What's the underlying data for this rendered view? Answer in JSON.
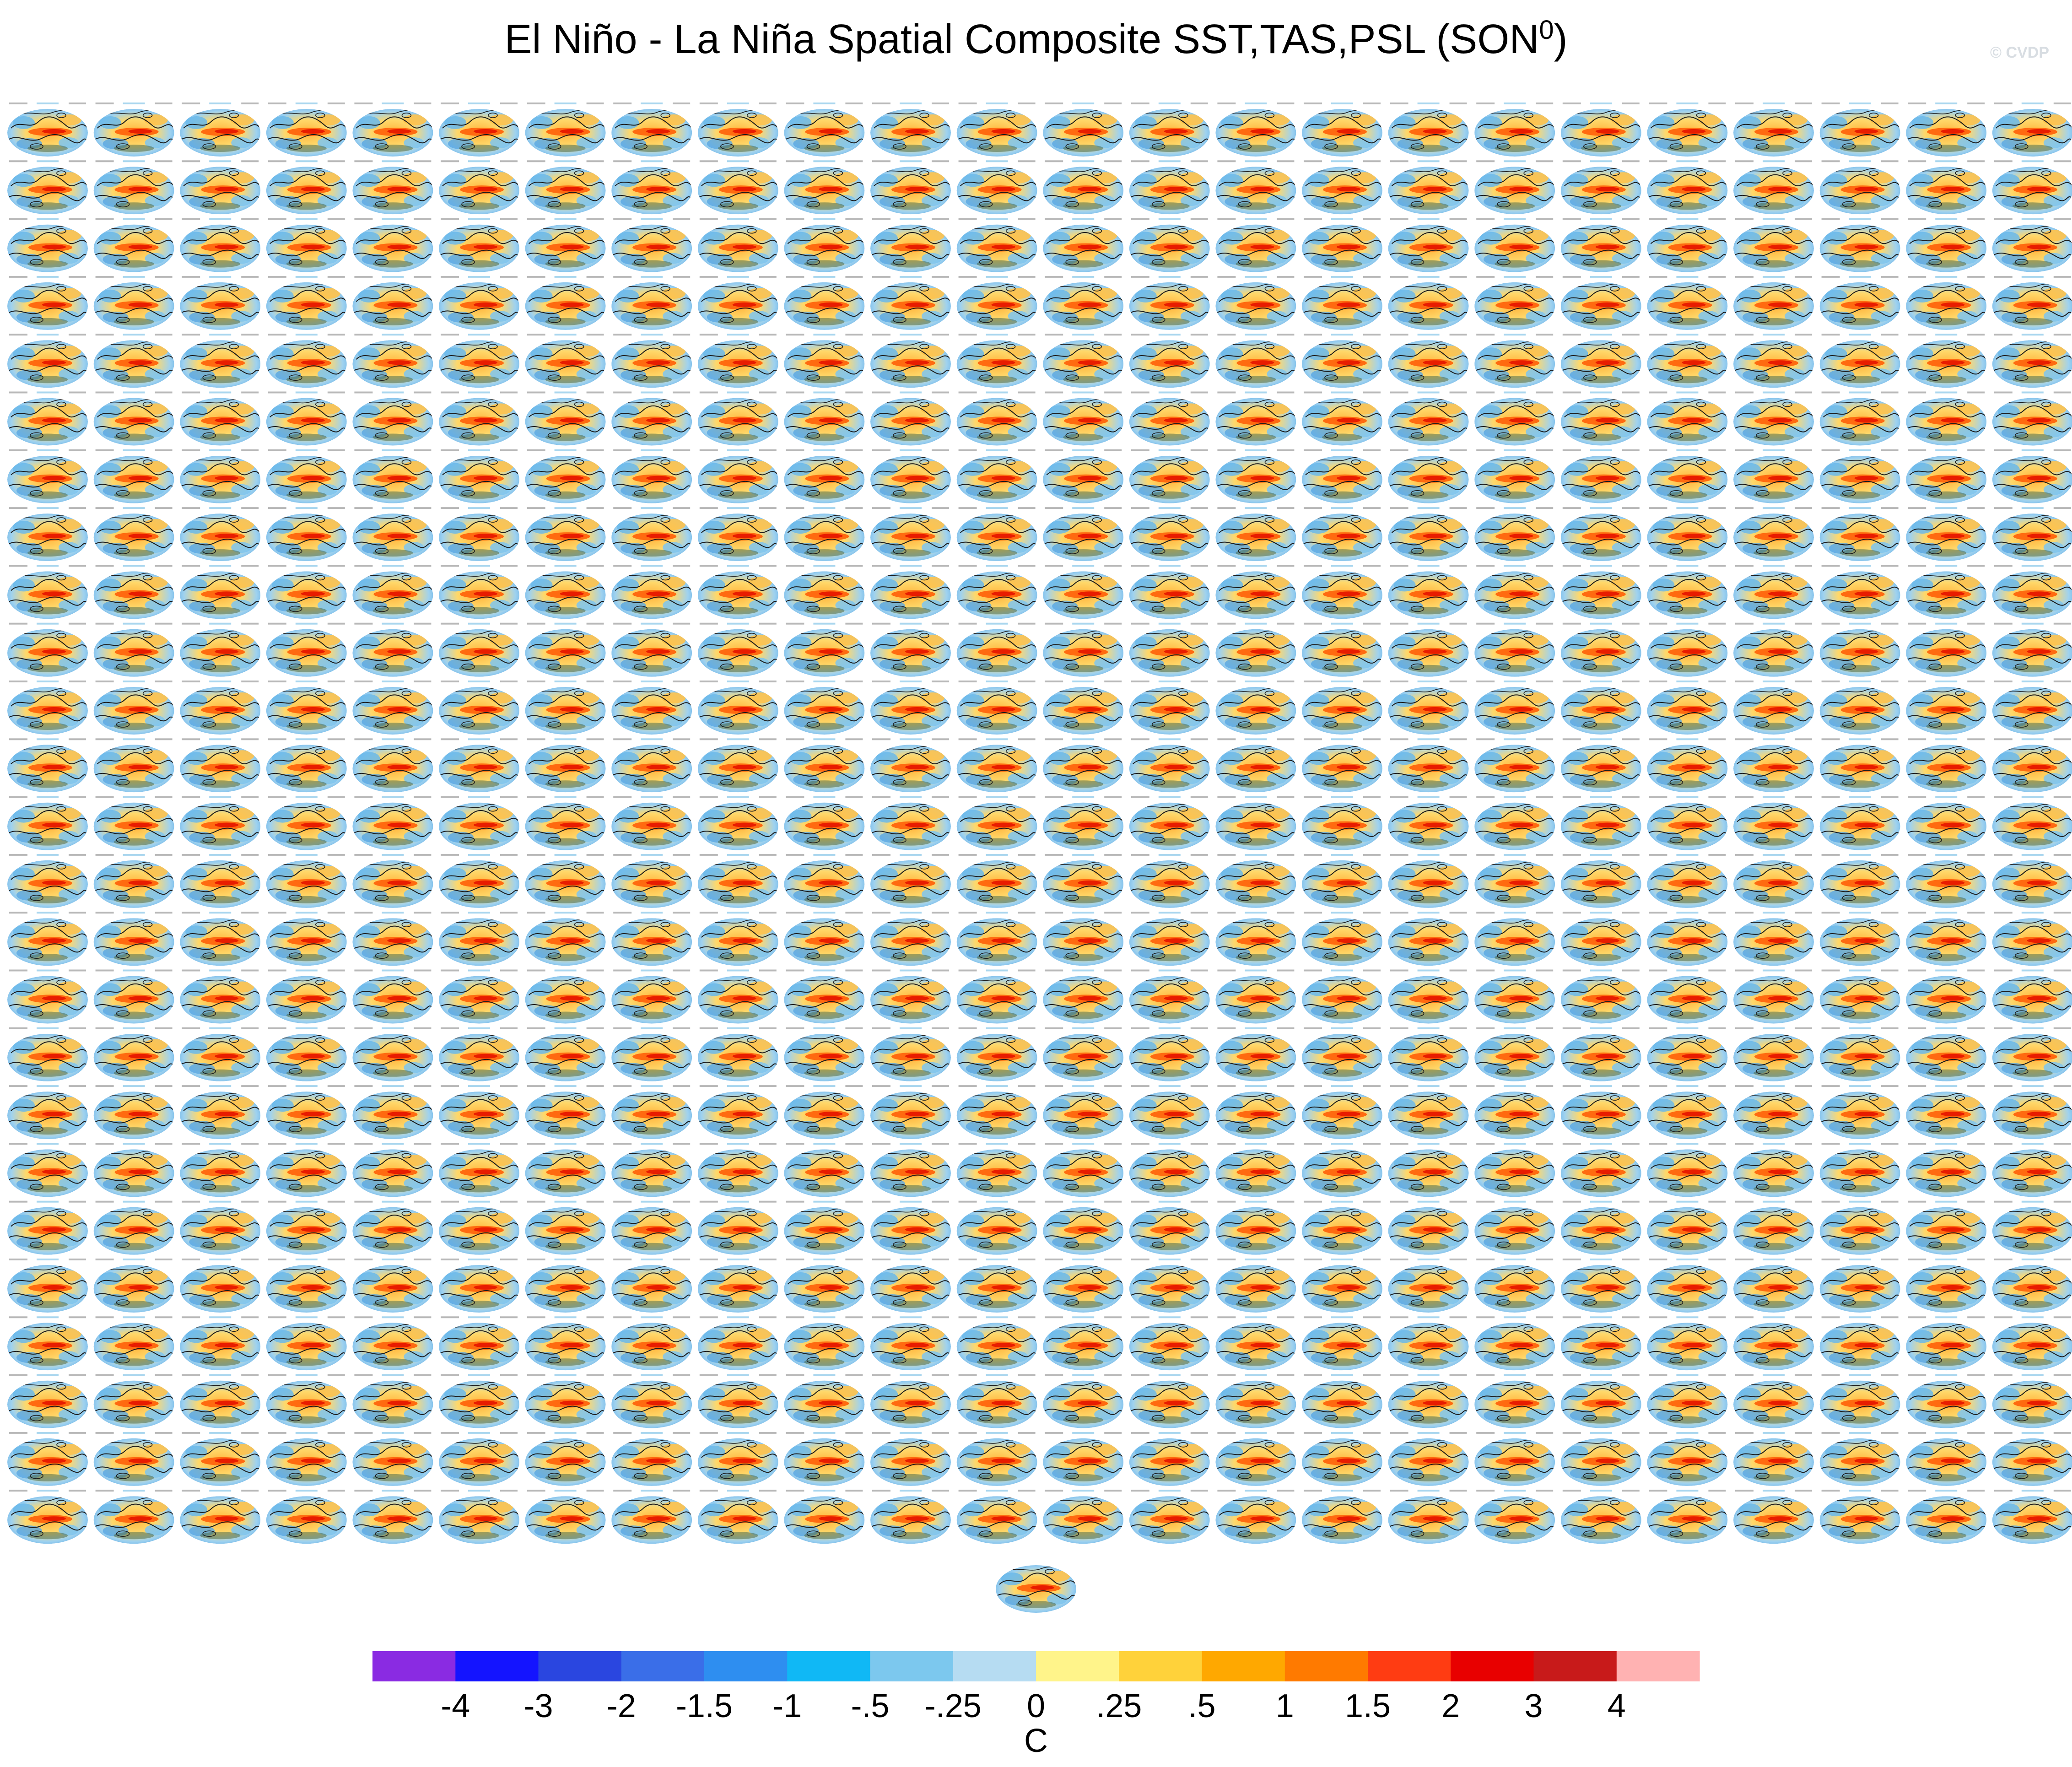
{
  "title": {
    "main": "El Niño - La Niña Spatial Composite SST,TAS,PSL (SON",
    "superscript": "0",
    "close": ")"
  },
  "watermark": "© CVDP",
  "chart_data": {
    "type": "heatmap",
    "description_kind": "grid of small global map panels (ensemble members) plus a summary panel and a discrete colorbar",
    "panels": {
      "rows": 25,
      "cols": 24,
      "extra_bottom_panels": 1
    },
    "colorbar": {
      "unit_label": "C",
      "tick_labels": [
        "-4",
        "-3",
        "-2",
        "-1.5",
        "-1",
        "-.5",
        "-.25",
        "0",
        ".25",
        ".5",
        "1",
        "1.5",
        "2",
        "3",
        "4"
      ],
      "bins": 16,
      "colors": [
        "#8a2be2",
        "#1414ff",
        "#2a46e0",
        "#3a6ee8",
        "#2e8ef0",
        "#10b8f5",
        "#7cc8ee",
        "#b6dcf2",
        "#fff48a",
        "#ffd23a",
        "#ffa800",
        "#ff7a00",
        "#ff3c12",
        "#e80000",
        "#c81a1a",
        "#ffb2b2"
      ]
    }
  }
}
